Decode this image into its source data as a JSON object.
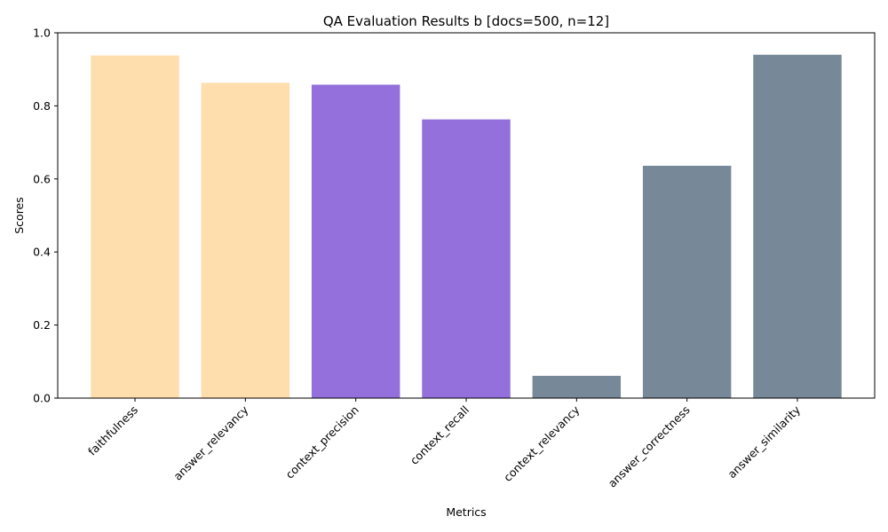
{
  "chart_data": {
    "type": "bar",
    "title": "QA Evaluation Results b [docs=500, n=12]",
    "xlabel": "Metrics",
    "ylabel": "Scores",
    "ylim": [
      0,
      1.0
    ],
    "yticks": [
      "0.0",
      "0.2",
      "0.4",
      "0.6",
      "0.8",
      "1.0"
    ],
    "grid": false,
    "categories": [
      "faithfulness",
      "answer_relevancy",
      "context_precision",
      "context_recall",
      "context_relevancy",
      "answer_correctness",
      "answer_similarity"
    ],
    "values": [
      0.938,
      0.863,
      0.858,
      0.763,
      0.061,
      0.636,
      0.94
    ],
    "colors": [
      "#FFDEAD",
      "#FFDEAD",
      "#9370DB",
      "#9370DB",
      "#778899",
      "#778899",
      "#778899"
    ]
  }
}
